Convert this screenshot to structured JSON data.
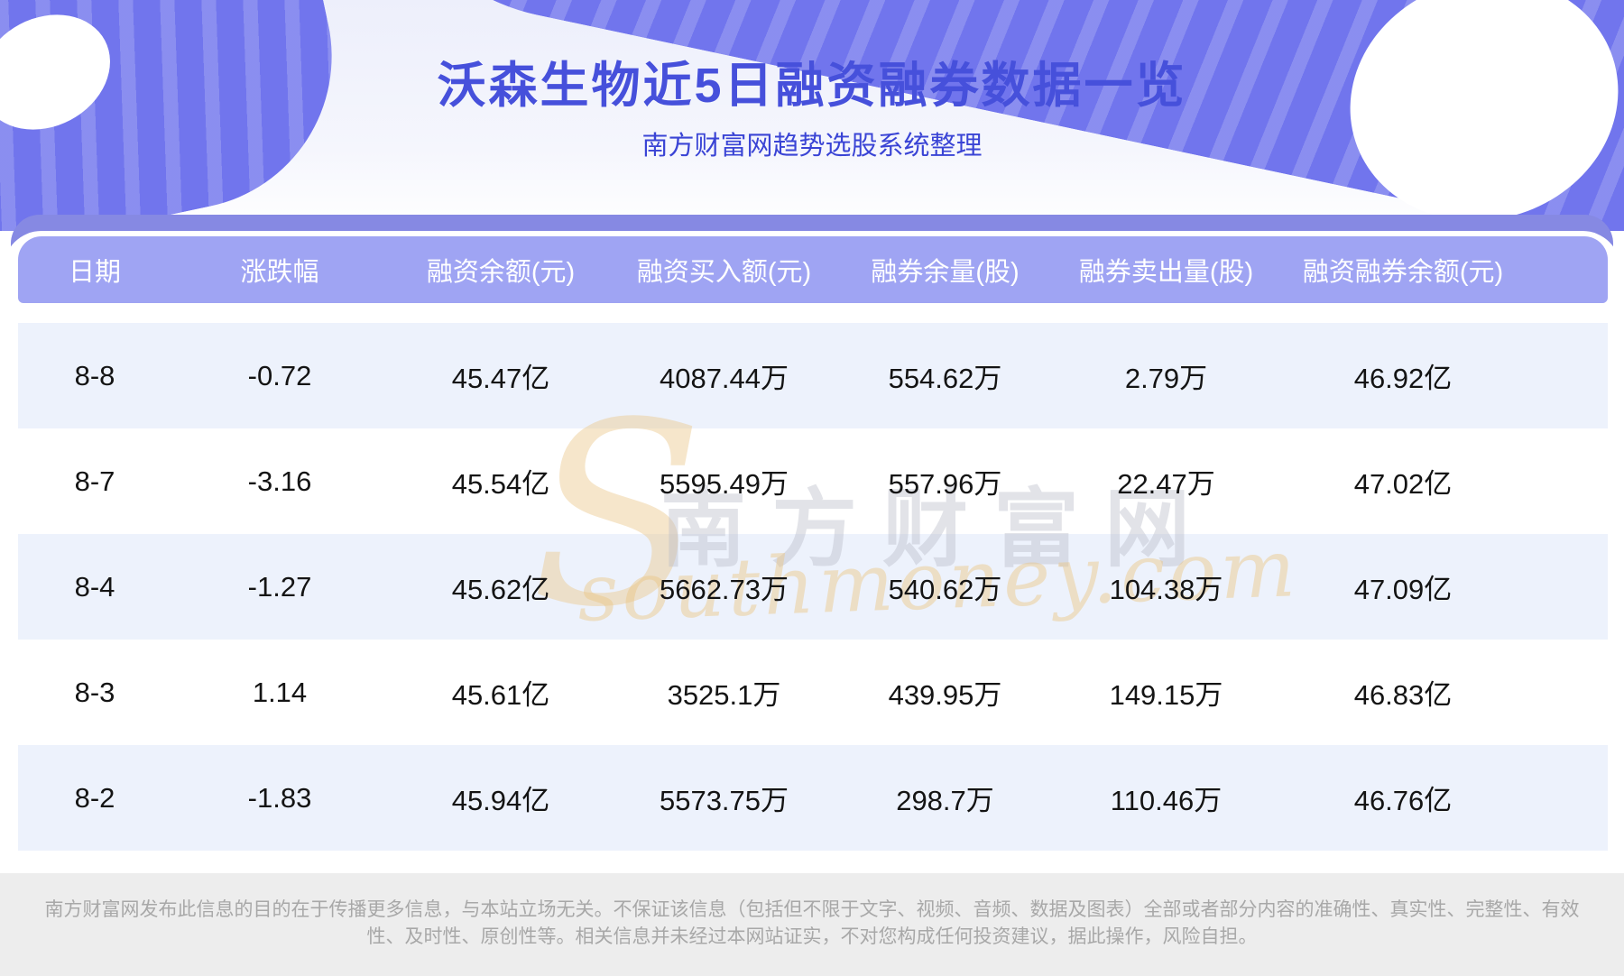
{
  "page": {
    "title": "沃森生物近5日融资融券数据一览",
    "subtitle": "南方财富网趋势选股系统整理"
  },
  "chart_data": {
    "type": "table",
    "title": "沃森生物近5日融资融券数据一览",
    "subtitle": "南方财富网趋势选股系统整理",
    "columns": [
      "日期",
      "涨跌幅",
      "融资余额(元)",
      "融资买入额(元)",
      "融券余量(股)",
      "融券卖出量(股)",
      "融资融券余额(元)"
    ],
    "rows": [
      [
        "8-8",
        "-0.72",
        "45.47亿",
        "4087.44万",
        "554.62万",
        "2.79万",
        "46.92亿"
      ],
      [
        "8-7",
        "-3.16",
        "45.54亿",
        "5595.49万",
        "557.96万",
        "22.47万",
        "47.02亿"
      ],
      [
        "8-4",
        "-1.27",
        "45.62亿",
        "5662.73万",
        "540.62万",
        "104.38万",
        "47.09亿"
      ],
      [
        "8-3",
        "1.14",
        "45.61亿",
        "3525.1万",
        "439.95万",
        "149.15万",
        "46.83亿"
      ],
      [
        "8-2",
        "-1.83",
        "45.94亿",
        "5573.75万",
        "298.7万",
        "110.46万",
        "46.76亿"
      ]
    ]
  },
  "watermark": {
    "s_glyph": "S",
    "cn": "南方财富网",
    "en": "southmoney.com"
  },
  "footer": {
    "line1": "南方财富网发布此信息的目的在于传播更多信息，与本站立场无关。不保证该信息（包括但不限于文字、视频、音频、数据及图表）全部或者部分内容的准确性、真实性、完整性、有效",
    "line2": "性、及时性、原创性等。相关信息并未经过本网站证实，不对您构成任何投资建议，据此操作，风险自担。"
  },
  "colors": {
    "title_blue": "#4650db",
    "subtitle_blue": "#3a44d5",
    "blob_purple": "#7175ed",
    "header_band_purple": "#8689e3",
    "header_strip_purple": "#9fa4f3",
    "row_alt_blue": "#edf2fc",
    "row_white": "#ffffff",
    "footer_bg": "#ededed",
    "footer_text": "#a8a8a8",
    "watermark_tan": "#ecc88c"
  }
}
